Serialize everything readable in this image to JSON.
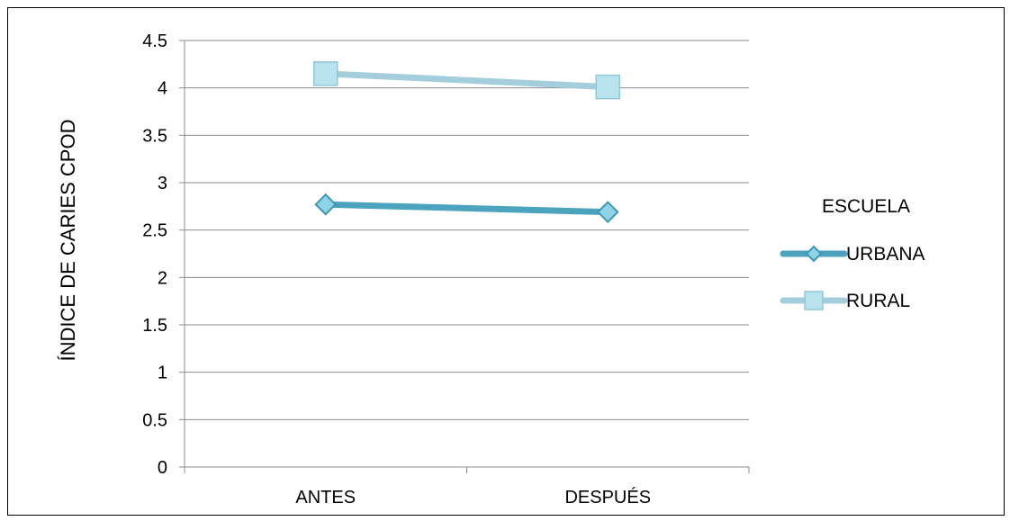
{
  "chart_data": {
    "type": "line",
    "title": "",
    "xlabel": "",
    "ylabel": "ÍNDICE DE CARIES CPOD",
    "categories": [
      "ANTES",
      "DESPUÉS"
    ],
    "ylim": [
      0,
      4.5
    ],
    "yticks": [
      "0",
      "0.5",
      "1",
      "1.5",
      "2",
      "2.5",
      "3",
      "3.5",
      "4",
      "4.5"
    ],
    "grid": true,
    "legend": {
      "title": "ESCUELA",
      "placement": "right"
    },
    "series": [
      {
        "name": "URBANA",
        "values": [
          2.77,
          2.69
        ],
        "color": "#4ba3bd",
        "marker": "diamond"
      },
      {
        "name": "RURAL",
        "values": [
          4.15,
          4.01
        ],
        "color": "#a5cedd",
        "marker": "square",
        "marker_fill": "#b8e2ee"
      }
    ]
  }
}
